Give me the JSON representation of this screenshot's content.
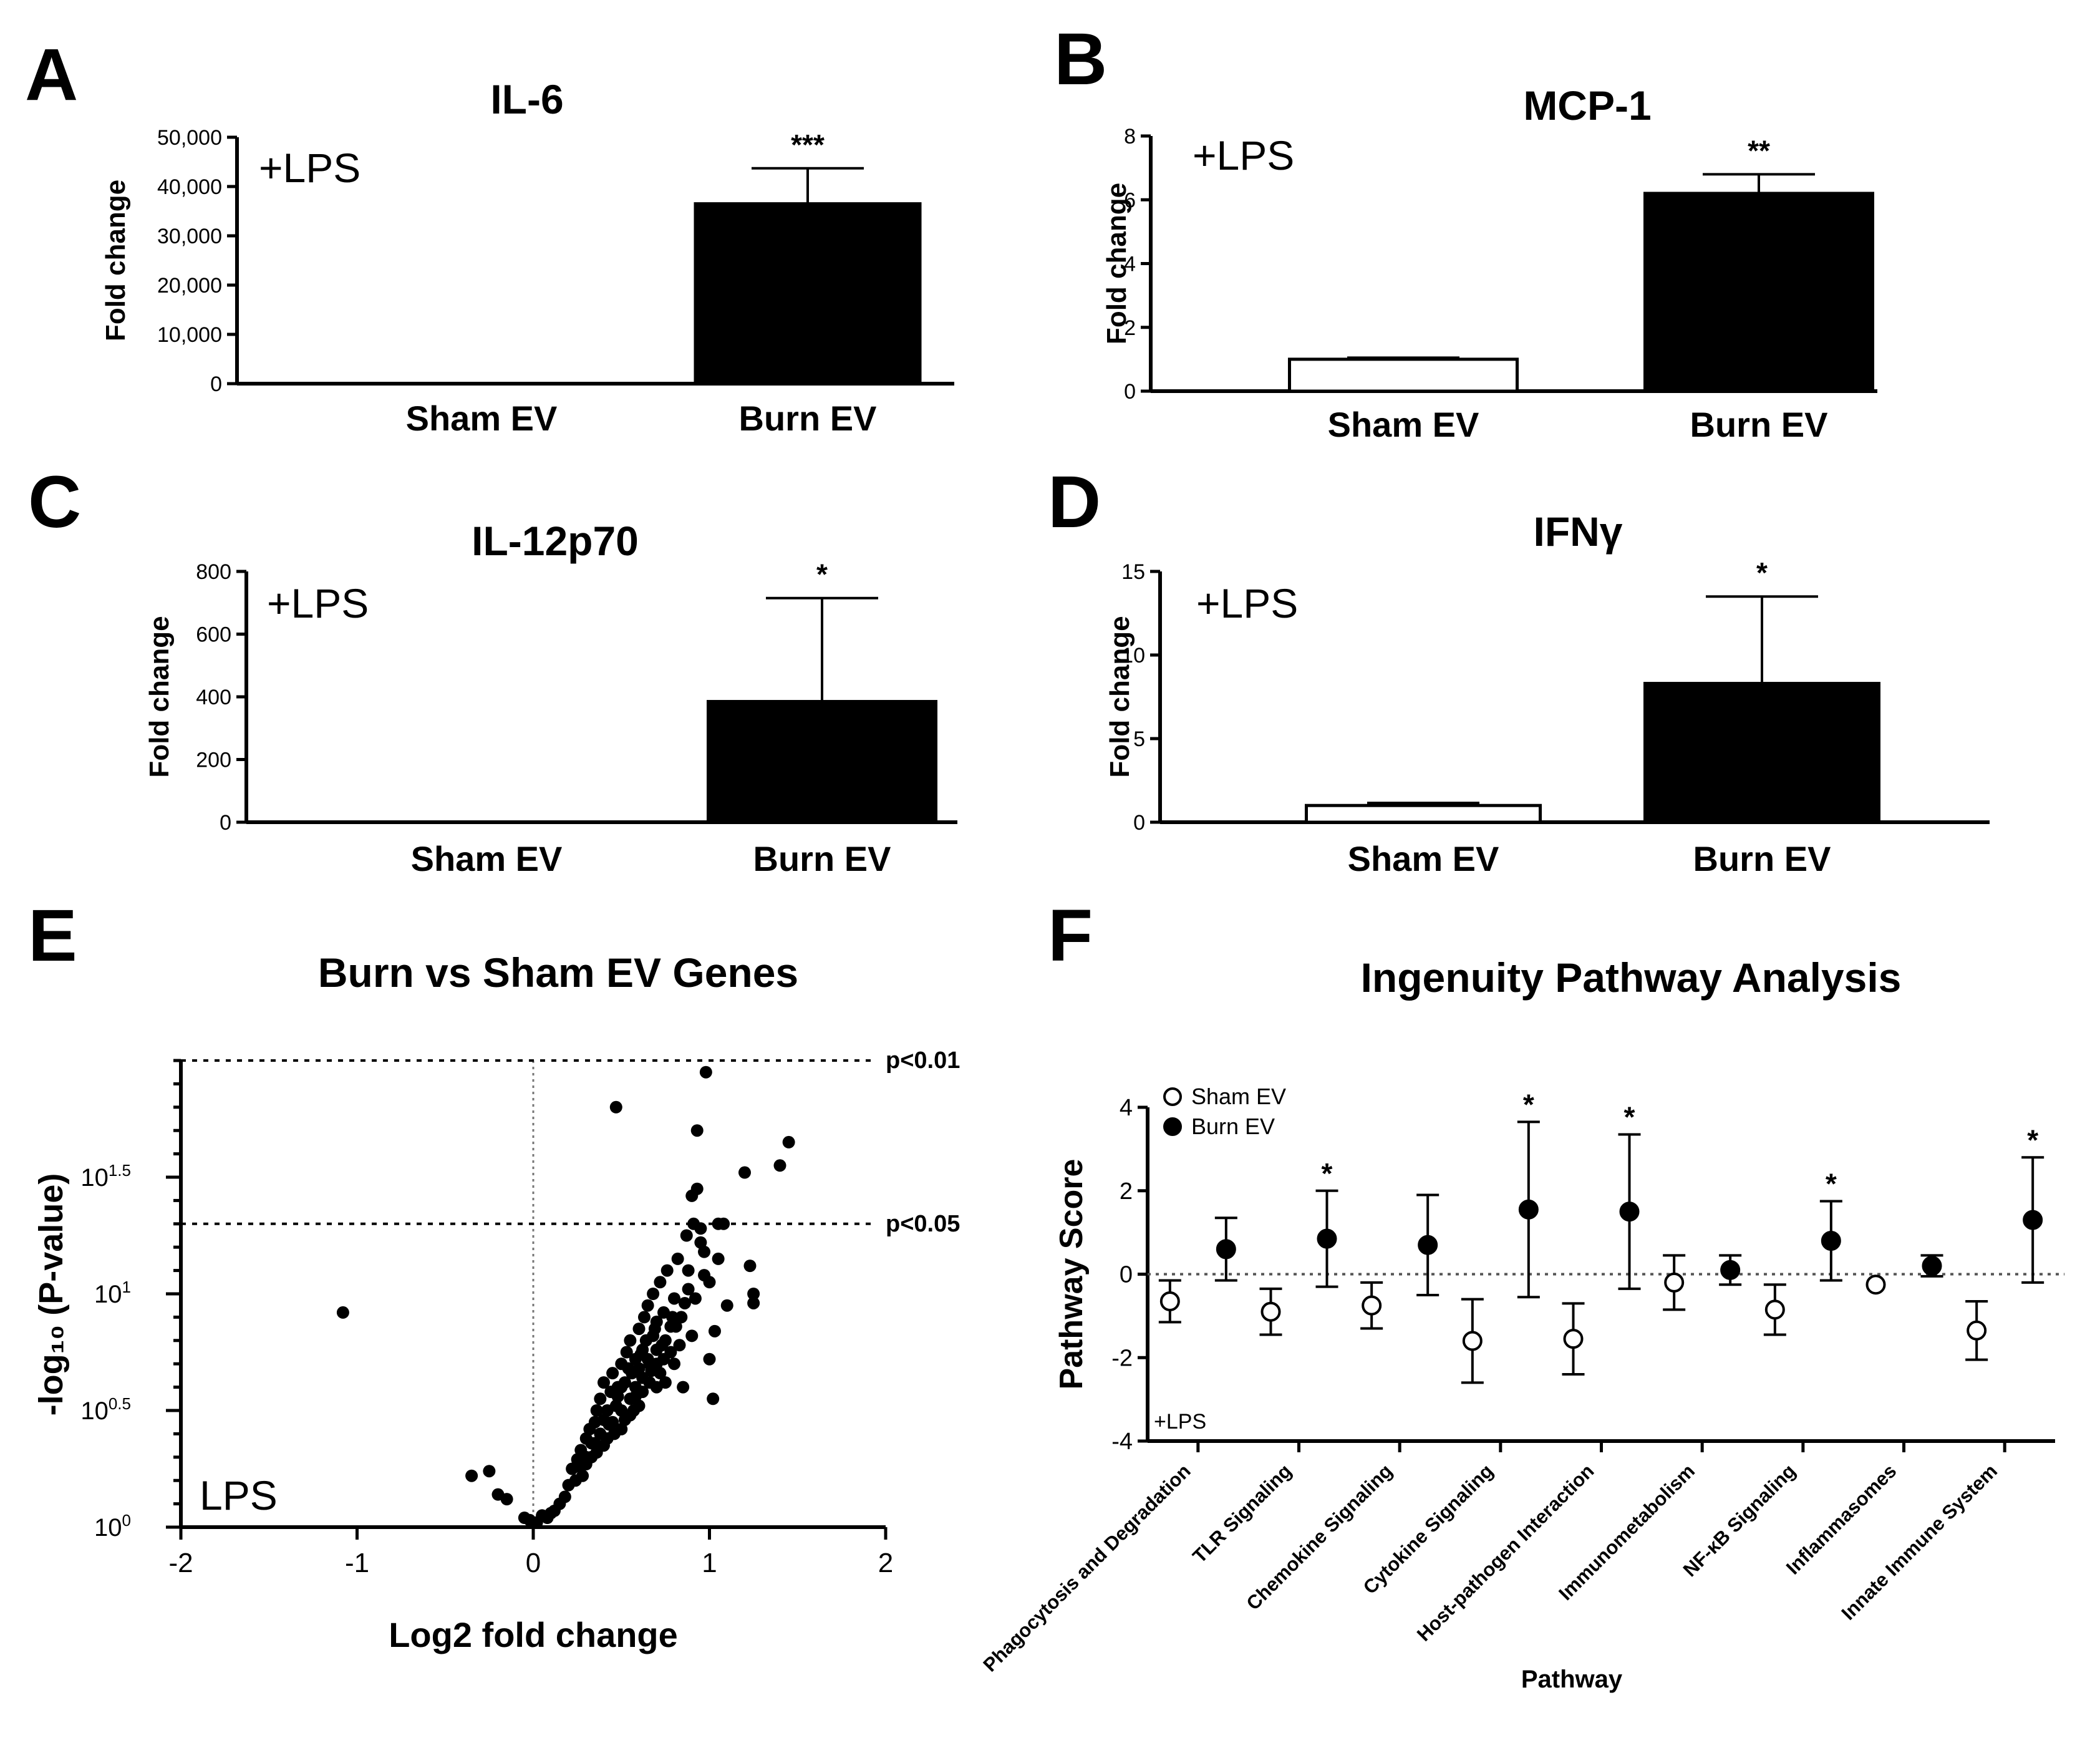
{
  "panels": [
    {
      "letter": "A",
      "title": "IL-6",
      "ylabel": "Fold change",
      "note": "+LPS"
    },
    {
      "letter": "B",
      "title": "MCP-1",
      "ylabel": "Fold change",
      "note": "+LPS"
    },
    {
      "letter": "C",
      "title": "IL-12p70",
      "ylabel": "Fold change",
      "note": "+LPS"
    },
    {
      "letter": "D",
      "title": "IFNγ",
      "ylabel": "Fold change",
      "note": "+LPS"
    },
    {
      "letter": "E",
      "title": "Burn vs Sham EV Genes",
      "xlabel": "Log2 fold change",
      "ylabel": "-log₁₀ (P-value)",
      "note": "LPS",
      "thresholds": [
        "p<0.01",
        "p<0.05"
      ]
    },
    {
      "letter": "F",
      "title": "Ingenuity Pathway Analysis",
      "xlabel": "Pathway",
      "ylabel": "Pathway Score",
      "note": "+LPS"
    }
  ],
  "chart_data": [
    {
      "panel": "A",
      "type": "bar",
      "title": "IL-6",
      "ylabel": "Fold change",
      "categories": [
        "Sham EV",
        "Burn EV"
      ],
      "values": [
        1,
        36500
      ],
      "errors": [
        0,
        7200
      ],
      "significance": [
        "",
        "***"
      ],
      "ylim": [
        0,
        50000
      ],
      "yticks": [
        0,
        10000,
        20000,
        30000,
        40000,
        50000
      ],
      "ytick_labels": [
        "0",
        "10,000",
        "20,000",
        "30,000",
        "40,000",
        "50,000"
      ],
      "bar_fill": [
        "#ffffff",
        "#000000"
      ]
    },
    {
      "panel": "B",
      "type": "bar",
      "title": "MCP-1",
      "ylabel": "Fold change",
      "categories": [
        "Sham EV",
        "Burn EV"
      ],
      "values": [
        1.0,
        6.2
      ],
      "errors": [
        0.05,
        0.6
      ],
      "significance": [
        "",
        "**"
      ],
      "ylim": [
        0,
        8
      ],
      "yticks": [
        0,
        2,
        4,
        6,
        8
      ],
      "ytick_labels": [
        "0",
        "2",
        "4",
        "6",
        "8"
      ],
      "bar_fill": [
        "#ffffff",
        "#000000"
      ]
    },
    {
      "panel": "C",
      "type": "bar",
      "title": "IL-12p70",
      "ylabel": "Fold change",
      "categories": [
        "Sham EV",
        "Burn EV"
      ],
      "values": [
        1,
        385
      ],
      "errors": [
        0,
        330
      ],
      "significance": [
        "",
        "*"
      ],
      "ylim": [
        0,
        800
      ],
      "yticks": [
        0,
        200,
        400,
        600,
        800
      ],
      "ytick_labels": [
        "0",
        "200",
        "400",
        "600",
        "800"
      ],
      "bar_fill": [
        "#ffffff",
        "#000000"
      ]
    },
    {
      "panel": "D",
      "type": "bar",
      "title": "IFNγ",
      "ylabel": "Fold change",
      "categories": [
        "Sham EV",
        "Burn EV"
      ],
      "values": [
        1.0,
        8.3
      ],
      "errors": [
        0.15,
        5.2
      ],
      "significance": [
        "",
        "*"
      ],
      "ylim": [
        0,
        15
      ],
      "yticks": [
        0,
        5,
        10,
        15
      ],
      "ytick_labels": [
        "0",
        "5",
        "10",
        "15"
      ],
      "bar_fill": [
        "#ffffff",
        "#000000"
      ]
    },
    {
      "panel": "E",
      "type": "scatter",
      "title": "Burn vs Sham EV Genes",
      "xlabel": "Log2 fold change",
      "ylabel": "-log10 (P-value)",
      "xlim": [
        -2,
        2
      ],
      "xticks": [
        -2,
        -1,
        0,
        1,
        2
      ],
      "ylim": [
        0,
        2
      ],
      "yscale": "log10",
      "yticks": [
        0,
        0.5,
        1,
        1.5
      ],
      "ytick_labels": [
        {
          "base": "10",
          "exp": "0"
        },
        {
          "base": "10",
          "exp": "0.5"
        },
        {
          "base": "10",
          "exp": "1"
        },
        {
          "base": "10",
          "exp": "1.5"
        }
      ],
      "reference_lines": {
        "x": 0,
        "y": [
          {
            "value": 2.0,
            "label": "p<0.01"
          },
          {
            "value": 1.3,
            "label": "p<0.05"
          }
        ]
      },
      "note": "LPS",
      "points": [
        [
          -1.08,
          0.92
        ],
        [
          -0.35,
          0.22
        ],
        [
          -0.25,
          0.24
        ],
        [
          -0.2,
          0.14
        ],
        [
          -0.15,
          0.12
        ],
        [
          -0.05,
          0.04
        ],
        [
          -0.02,
          0.03
        ],
        [
          0.02,
          0.02
        ],
        [
          0.05,
          0.05
        ],
        [
          0.08,
          0.04
        ],
        [
          0.1,
          0.06
        ],
        [
          0.12,
          0.07
        ],
        [
          0.15,
          0.1
        ],
        [
          0.18,
          0.13
        ],
        [
          0.2,
          0.18
        ],
        [
          0.22,
          0.25
        ],
        [
          0.24,
          0.2
        ],
        [
          0.25,
          0.29
        ],
        [
          0.27,
          0.33
        ],
        [
          0.28,
          0.22
        ],
        [
          0.3,
          0.38
        ],
        [
          0.3,
          0.27
        ],
        [
          0.32,
          0.42
        ],
        [
          0.33,
          0.3
        ],
        [
          0.35,
          0.45
        ],
        [
          0.35,
          0.36
        ],
        [
          0.36,
          0.5
        ],
        [
          0.38,
          0.4
        ],
        [
          0.38,
          0.55
        ],
        [
          0.4,
          0.46
        ],
        [
          0.4,
          0.62
        ],
        [
          0.42,
          0.5
        ],
        [
          0.42,
          0.38
        ],
        [
          0.44,
          0.58
        ],
        [
          0.45,
          0.66
        ],
        [
          0.45,
          0.45
        ],
        [
          0.47,
          0.52
        ],
        [
          0.48,
          0.6
        ],
        [
          0.5,
          0.7
        ],
        [
          0.5,
          0.5
        ],
        [
          0.5,
          0.42
        ],
        [
          0.52,
          0.62
        ],
        [
          0.53,
          0.75
        ],
        [
          0.55,
          0.55
        ],
        [
          0.55,
          0.8
        ],
        [
          0.56,
          0.66
        ],
        [
          0.58,
          0.72
        ],
        [
          0.58,
          0.6
        ],
        [
          0.6,
          0.85
        ],
        [
          0.6,
          0.68
        ],
        [
          0.6,
          0.52
        ],
        [
          0.62,
          0.76
        ],
        [
          0.63,
          0.9
        ],
        [
          0.65,
          0.72
        ],
        [
          0.65,
          0.95
        ],
        [
          0.66,
          0.62
        ],
        [
          0.68,
          0.82
        ],
        [
          0.68,
          1.0
        ],
        [
          0.7,
          0.76
        ],
        [
          0.7,
          0.88
        ],
        [
          0.72,
          1.05
        ],
        [
          0.72,
          0.66
        ],
        [
          0.74,
          0.92
        ],
        [
          0.75,
          0.8
        ],
        [
          0.76,
          1.1
        ],
        [
          0.78,
          0.86
        ],
        [
          0.8,
          0.98
        ],
        [
          0.8,
          0.7
        ],
        [
          0.82,
          1.15
        ],
        [
          0.84,
          0.9
        ],
        [
          0.85,
          0.6
        ],
        [
          0.87,
          1.25
        ],
        [
          0.88,
          1.02
        ],
        [
          0.9,
          0.82
        ],
        [
          0.9,
          1.42
        ],
        [
          0.91,
          1.3
        ],
        [
          0.93,
          1.7
        ],
        [
          0.95,
          1.28
        ],
        [
          0.97,
          1.18
        ],
        [
          0.98,
          1.95
        ],
        [
          1.0,
          0.72
        ],
        [
          1.0,
          1.05
        ],
        [
          1.02,
          0.55
        ],
        [
          1.03,
          0.84
        ],
        [
          1.05,
          1.3
        ],
        [
          1.08,
          1.3
        ],
        [
          1.05,
          1.15
        ],
        [
          1.1,
          0.95
        ],
        [
          1.2,
          1.52
        ],
        [
          1.23,
          1.12
        ],
        [
          1.25,
          1.0
        ],
        [
          1.25,
          0.96
        ],
        [
          1.4,
          1.55
        ],
        [
          1.45,
          1.65
        ],
        [
          0.47,
          1.8
        ],
        [
          0.93,
          1.45
        ],
        [
          0.95,
          1.22
        ],
        [
          0.55,
          0.48
        ],
        [
          0.62,
          0.58
        ],
        [
          0.66,
          0.7
        ],
        [
          0.7,
          0.6
        ],
        [
          0.75,
          0.62
        ],
        [
          0.78,
          0.75
        ],
        [
          0.36,
          0.32
        ],
        [
          0.4,
          0.35
        ],
        [
          0.46,
          0.4
        ],
        [
          0.48,
          0.56
        ],
        [
          0.52,
          0.46
        ],
        [
          0.54,
          0.68
        ],
        [
          0.57,
          0.5
        ],
        [
          0.62,
          0.64
        ],
        [
          0.64,
          0.8
        ],
        [
          0.67,
          0.67
        ],
        [
          0.7,
          0.7
        ],
        [
          0.73,
          0.78
        ],
        [
          0.79,
          0.9
        ],
        [
          0.83,
          0.78
        ],
        [
          0.86,
          0.96
        ],
        [
          0.88,
          1.1
        ],
        [
          0.3,
          0.3
        ],
        [
          0.26,
          0.26
        ],
        [
          0.33,
          0.36
        ],
        [
          0.43,
          0.44
        ],
        [
          0.5,
          0.6
        ],
        [
          0.58,
          0.56
        ],
        [
          0.61,
          0.74
        ],
        [
          0.69,
          0.85
        ],
        [
          0.74,
          0.72
        ],
        [
          0.81,
          0.86
        ],
        [
          0.92,
          0.98
        ],
        [
          0.97,
          1.08
        ]
      ]
    },
    {
      "panel": "F",
      "type": "scatter",
      "title": "Ingenuity Pathway Analysis",
      "xlabel": "Pathway",
      "ylabel": "Pathway Score",
      "ylim": [
        -4,
        4
      ],
      "yticks": [
        -4,
        -2,
        0,
        2,
        4
      ],
      "categories": [
        "Phagocytosis and Degradation",
        "TLR Signaling",
        "Chemokine Signaling",
        "Cytokine Signaling",
        "Host-pathogen Interaction",
        "Immunometabolism",
        "NF-κB Signaling",
        "Inflammasomes",
        "Innate Immune System"
      ],
      "series": [
        {
          "name": "Sham EV",
          "marker": "open-circle",
          "values": [
            -0.65,
            -0.9,
            -0.75,
            -1.6,
            -1.55,
            -0.2,
            -0.85,
            -0.25,
            -1.35
          ],
          "errors": [
            0.5,
            0.55,
            0.55,
            1.0,
            0.85,
            0.65,
            0.6,
            0.0,
            0.7
          ]
        },
        {
          "name": "Burn EV",
          "marker": "filled-circle",
          "values": [
            0.6,
            0.85,
            0.7,
            1.55,
            1.5,
            0.1,
            0.8,
            0.2,
            1.3
          ],
          "errors": [
            0.75,
            1.15,
            1.2,
            2.1,
            1.85,
            0.35,
            0.95,
            0.25,
            1.5
          ]
        }
      ],
      "significance": [
        "",
        "*",
        "",
        "*",
        "*",
        "",
        "*",
        "",
        "*"
      ],
      "reference_line": {
        "y": 0,
        "style": "dotted"
      },
      "note": "+LPS"
    }
  ]
}
